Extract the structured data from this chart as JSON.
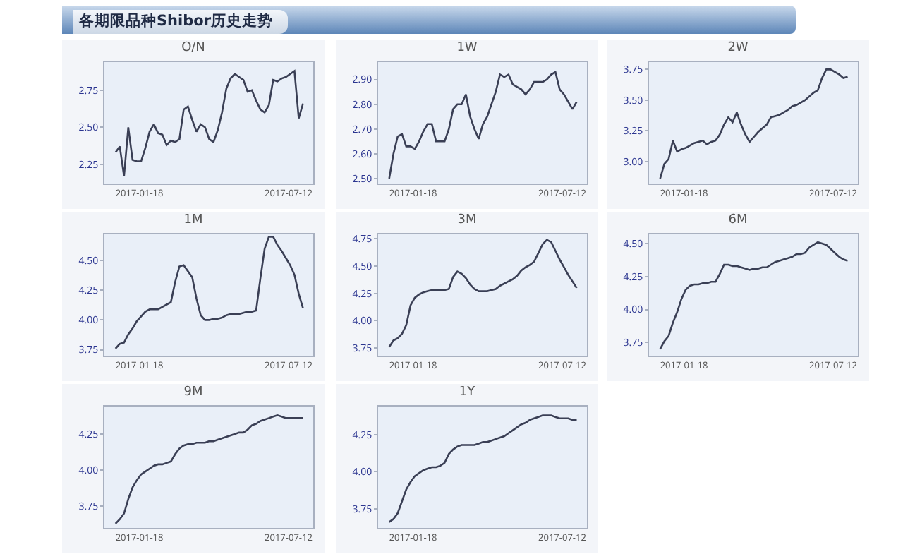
{
  "chart_data": [
    {
      "type": "other",
      "title": "各期限品种Shibor历史走势"
    },
    {
      "type": "line",
      "title": "O/N",
      "color": "#3a3f55",
      "xlim": [
        "2016-12-08",
        "2017-08-10"
      ],
      "xticks": [
        "2017-01-18",
        "2017-07-12"
      ],
      "ylim": [
        2.12,
        2.94
      ],
      "yticks": [
        2.25,
        {
          "value": 2.5,
          "label": "2.50"
        },
        2.75
      ],
      "x": [
        "2016-12-21",
        "2016-12-26",
        "2016-12-31",
        "2017-01-05",
        "2017-01-10",
        "2017-01-15",
        "2017-01-20",
        "2017-01-25",
        "2017-01-30",
        "2017-02-04",
        "2017-02-09",
        "2017-02-14",
        "2017-02-19",
        "2017-02-24",
        "2017-03-01",
        "2017-03-06",
        "2017-03-11",
        "2017-03-16",
        "2017-03-21",
        "2017-03-26",
        "2017-03-31",
        "2017-04-05",
        "2017-04-10",
        "2017-04-15",
        "2017-04-20",
        "2017-04-25",
        "2017-04-30",
        "2017-05-05",
        "2017-05-10",
        "2017-05-15",
        "2017-05-20",
        "2017-05-25",
        "2017-05-30",
        "2017-06-04",
        "2017-06-09",
        "2017-06-14",
        "2017-06-19",
        "2017-06-24",
        "2017-06-29",
        "2017-07-04",
        "2017-07-09",
        "2017-07-14",
        "2017-07-19",
        "2017-07-24",
        "2017-07-29"
      ],
      "values": [
        2.33,
        2.37,
        2.17,
        2.5,
        2.28,
        2.27,
        2.27,
        2.36,
        2.47,
        2.52,
        2.46,
        2.45,
        2.38,
        2.41,
        2.4,
        2.42,
        2.62,
        2.64,
        2.55,
        2.47,
        2.52,
        2.5,
        2.42,
        2.4,
        2.48,
        2.6,
        2.76,
        2.83,
        2.86,
        2.84,
        2.82,
        2.74,
        2.75,
        2.68,
        2.62,
        2.6,
        2.65,
        2.82,
        2.81,
        2.83,
        2.84,
        2.86,
        2.88,
        2.56,
        2.66
      ]
    },
    {
      "type": "line",
      "title": "1W",
      "color": "#3a3f55",
      "xlim": [
        "2016-12-08",
        "2017-08-10"
      ],
      "xticks": [
        "2017-01-18",
        "2017-07-12"
      ],
      "ylim": [
        2.48,
        2.97
      ],
      "yticks": [
        {
          "value": 2.5,
          "label": "2.50"
        },
        {
          "value": 2.6,
          "label": "2.60"
        },
        {
          "value": 2.7,
          "label": "2.70"
        },
        {
          "value": 2.8,
          "label": "2.80"
        },
        {
          "value": 2.9,
          "label": "2.90"
        }
      ],
      "x": [
        "2016-12-21",
        "2016-12-26",
        "2016-12-31",
        "2017-01-05",
        "2017-01-10",
        "2017-01-15",
        "2017-01-20",
        "2017-01-25",
        "2017-01-30",
        "2017-02-04",
        "2017-02-09",
        "2017-02-14",
        "2017-02-19",
        "2017-02-24",
        "2017-03-01",
        "2017-03-06",
        "2017-03-11",
        "2017-03-16",
        "2017-03-21",
        "2017-03-26",
        "2017-03-31",
        "2017-04-05",
        "2017-04-10",
        "2017-04-15",
        "2017-04-20",
        "2017-04-25",
        "2017-04-30",
        "2017-05-05",
        "2017-05-10",
        "2017-05-15",
        "2017-05-20",
        "2017-05-25",
        "2017-05-30",
        "2017-06-04",
        "2017-06-09",
        "2017-06-14",
        "2017-06-19",
        "2017-06-24",
        "2017-06-29",
        "2017-07-04",
        "2017-07-09",
        "2017-07-14",
        "2017-07-19",
        "2017-07-24",
        "2017-07-29"
      ],
      "values": [
        2.5,
        2.6,
        2.67,
        2.68,
        2.63,
        2.63,
        2.62,
        2.65,
        2.69,
        2.72,
        2.72,
        2.65,
        2.65,
        2.65,
        2.7,
        2.78,
        2.8,
        2.8,
        2.84,
        2.75,
        2.7,
        2.66,
        2.72,
        2.75,
        2.8,
        2.85,
        2.92,
        2.91,
        2.92,
        2.88,
        2.87,
        2.86,
        2.84,
        2.86,
        2.89,
        2.89,
        2.89,
        2.9,
        2.92,
        2.93,
        2.86,
        2.84,
        2.81,
        2.78,
        2.81
      ]
    },
    {
      "type": "line",
      "title": "2W",
      "color": "#3a3f55",
      "xlim": [
        "2016-12-08",
        "2017-08-10"
      ],
      "xticks": [
        "2017-01-18",
        "2017-07-12"
      ],
      "ylim": [
        2.82,
        3.81
      ],
      "yticks": [
        {
          "value": 3,
          "label": "3.00"
        },
        3.25,
        {
          "value": 3.5,
          "label": "3.50"
        },
        3.75
      ],
      "x": [
        "2016-12-21",
        "2016-12-26",
        "2016-12-31",
        "2017-01-05",
        "2017-01-10",
        "2017-01-15",
        "2017-01-20",
        "2017-01-25",
        "2017-01-30",
        "2017-02-04",
        "2017-02-09",
        "2017-02-14",
        "2017-02-19",
        "2017-02-24",
        "2017-03-01",
        "2017-03-06",
        "2017-03-11",
        "2017-03-16",
        "2017-03-21",
        "2017-03-26",
        "2017-03-31",
        "2017-04-05",
        "2017-04-10",
        "2017-04-15",
        "2017-04-20",
        "2017-04-25",
        "2017-04-30",
        "2017-05-05",
        "2017-05-10",
        "2017-05-15",
        "2017-05-20",
        "2017-05-25",
        "2017-05-30",
        "2017-06-04",
        "2017-06-09",
        "2017-06-14",
        "2017-06-19",
        "2017-06-24",
        "2017-06-29",
        "2017-07-04",
        "2017-07-09",
        "2017-07-14",
        "2017-07-19",
        "2017-07-24",
        "2017-07-29"
      ],
      "values": [
        2.86,
        2.98,
        3.02,
        3.17,
        3.08,
        3.1,
        3.11,
        3.13,
        3.15,
        3.16,
        3.17,
        3.14,
        3.16,
        3.17,
        3.22,
        3.3,
        3.36,
        3.32,
        3.4,
        3.3,
        3.22,
        3.16,
        3.2,
        3.24,
        3.27,
        3.3,
        3.36,
        3.37,
        3.38,
        3.4,
        3.42,
        3.45,
        3.46,
        3.48,
        3.5,
        3.53,
        3.56,
        3.58,
        3.68,
        3.75,
        3.75,
        3.73,
        3.71,
        3.68,
        3.69
      ]
    },
    {
      "type": "line",
      "title": "1M",
      "color": "#3a3f55",
      "xlim": [
        "2016-12-08",
        "2017-08-10"
      ],
      "xticks": [
        "2017-01-18",
        "2017-07-12"
      ],
      "ylim": [
        3.7,
        4.72
      ],
      "yticks": [
        3.75,
        {
          "value": 4,
          "label": "4.00"
        },
        4.25,
        {
          "value": 4.5,
          "label": "4.50"
        }
      ],
      "x": [
        "2016-12-21",
        "2016-12-26",
        "2016-12-31",
        "2017-01-05",
        "2017-01-10",
        "2017-01-15",
        "2017-01-20",
        "2017-01-25",
        "2017-01-30",
        "2017-02-04",
        "2017-02-09",
        "2017-02-14",
        "2017-02-19",
        "2017-02-24",
        "2017-03-01",
        "2017-03-06",
        "2017-03-11",
        "2017-03-16",
        "2017-03-21",
        "2017-03-26",
        "2017-03-31",
        "2017-04-05",
        "2017-04-10",
        "2017-04-15",
        "2017-04-20",
        "2017-04-25",
        "2017-04-30",
        "2017-05-05",
        "2017-05-10",
        "2017-05-15",
        "2017-05-20",
        "2017-05-25",
        "2017-05-30",
        "2017-06-04",
        "2017-06-09",
        "2017-06-14",
        "2017-06-19",
        "2017-06-24",
        "2017-06-29",
        "2017-07-04",
        "2017-07-09",
        "2017-07-14",
        "2017-07-19",
        "2017-07-24",
        "2017-07-29"
      ],
      "values": [
        3.76,
        3.8,
        3.81,
        3.88,
        3.93,
        3.99,
        4.03,
        4.07,
        4.09,
        4.09,
        4.09,
        4.11,
        4.13,
        4.15,
        4.32,
        4.45,
        4.46,
        4.41,
        4.36,
        4.18,
        4.04,
        4.0,
        4.0,
        4.01,
        4.01,
        4.02,
        4.04,
        4.05,
        4.05,
        4.05,
        4.06,
        4.07,
        4.07,
        4.08,
        4.35,
        4.6,
        4.7,
        4.7,
        4.63,
        4.58,
        4.52,
        4.46,
        4.38,
        4.22,
        4.1
      ]
    },
    {
      "type": "line",
      "title": "3M",
      "color": "#3a3f55",
      "xlim": [
        "2016-12-08",
        "2017-08-10"
      ],
      "xticks": [
        "2017-01-18",
        "2017-07-12"
      ],
      "ylim": [
        3.68,
        4.79
      ],
      "yticks": [
        3.75,
        {
          "value": 4,
          "label": "4.00"
        },
        4.25,
        {
          "value": 4.5,
          "label": "4.50"
        },
        4.75
      ],
      "x": [
        "2016-12-21",
        "2016-12-26",
        "2016-12-31",
        "2017-01-05",
        "2017-01-10",
        "2017-01-15",
        "2017-01-20",
        "2017-01-25",
        "2017-01-30",
        "2017-02-04",
        "2017-02-09",
        "2017-02-14",
        "2017-02-19",
        "2017-02-24",
        "2017-03-01",
        "2017-03-06",
        "2017-03-11",
        "2017-03-16",
        "2017-03-21",
        "2017-03-26",
        "2017-03-31",
        "2017-04-05",
        "2017-04-10",
        "2017-04-15",
        "2017-04-20",
        "2017-04-25",
        "2017-04-30",
        "2017-05-05",
        "2017-05-10",
        "2017-05-15",
        "2017-05-20",
        "2017-05-25",
        "2017-05-30",
        "2017-06-04",
        "2017-06-09",
        "2017-06-14",
        "2017-06-19",
        "2017-06-24",
        "2017-06-29",
        "2017-07-04",
        "2017-07-09",
        "2017-07-14",
        "2017-07-19",
        "2017-07-24",
        "2017-07-29"
      ],
      "values": [
        3.76,
        3.82,
        3.84,
        3.88,
        3.96,
        4.14,
        4.21,
        4.24,
        4.26,
        4.27,
        4.28,
        4.28,
        4.28,
        4.28,
        4.29,
        4.4,
        4.45,
        4.43,
        4.39,
        4.33,
        4.29,
        4.27,
        4.27,
        4.27,
        4.28,
        4.29,
        4.32,
        4.34,
        4.36,
        4.38,
        4.41,
        4.46,
        4.49,
        4.51,
        4.54,
        4.62,
        4.7,
        4.74,
        4.72,
        4.64,
        4.56,
        4.49,
        4.42,
        4.36,
        4.3
      ]
    },
    {
      "type": "line",
      "title": "6M",
      "color": "#3a3f55",
      "xlim": [
        "2016-12-08",
        "2017-08-10"
      ],
      "xticks": [
        "2017-01-18",
        "2017-07-12"
      ],
      "ylim": [
        3.65,
        4.57
      ],
      "yticks": [
        3.75,
        {
          "value": 4,
          "label": "4.00"
        },
        4.25,
        {
          "value": 4.5,
          "label": "4.50"
        }
      ],
      "x": [
        "2016-12-21",
        "2016-12-26",
        "2016-12-31",
        "2017-01-05",
        "2017-01-10",
        "2017-01-15",
        "2017-01-20",
        "2017-01-25",
        "2017-01-30",
        "2017-02-04",
        "2017-02-09",
        "2017-02-14",
        "2017-02-19",
        "2017-02-24",
        "2017-03-01",
        "2017-03-06",
        "2017-03-11",
        "2017-03-16",
        "2017-03-21",
        "2017-03-26",
        "2017-03-31",
        "2017-04-05",
        "2017-04-10",
        "2017-04-15",
        "2017-04-20",
        "2017-04-25",
        "2017-04-30",
        "2017-05-05",
        "2017-05-10",
        "2017-05-15",
        "2017-05-20",
        "2017-05-25",
        "2017-05-30",
        "2017-06-04",
        "2017-06-09",
        "2017-06-14",
        "2017-06-19",
        "2017-06-24",
        "2017-06-29",
        "2017-07-04",
        "2017-07-09",
        "2017-07-14",
        "2017-07-19",
        "2017-07-24",
        "2017-07-29"
      ],
      "values": [
        3.7,
        3.76,
        3.8,
        3.9,
        3.98,
        4.08,
        4.15,
        4.18,
        4.19,
        4.19,
        4.2,
        4.2,
        4.21,
        4.21,
        4.27,
        4.34,
        4.34,
        4.33,
        4.33,
        4.32,
        4.31,
        4.3,
        4.31,
        4.31,
        4.32,
        4.32,
        4.34,
        4.36,
        4.37,
        4.38,
        4.39,
        4.4,
        4.42,
        4.42,
        4.43,
        4.47,
        4.49,
        4.51,
        4.5,
        4.49,
        4.46,
        4.43,
        4.4,
        4.38,
        4.37
      ]
    },
    {
      "type": "line",
      "title": "9M",
      "color": "#3a3f55",
      "xlim": [
        "2016-12-08",
        "2017-08-10"
      ],
      "xticks": [
        "2017-01-18",
        "2017-07-12"
      ],
      "ylim": [
        3.6,
        4.44
      ],
      "yticks": [
        3.75,
        {
          "value": 4,
          "label": "4.00"
        },
        4.25
      ],
      "x": [
        "2016-12-21",
        "2016-12-26",
        "2016-12-31",
        "2017-01-05",
        "2017-01-10",
        "2017-01-15",
        "2017-01-20",
        "2017-01-25",
        "2017-01-30",
        "2017-02-04",
        "2017-02-09",
        "2017-02-14",
        "2017-02-19",
        "2017-02-24",
        "2017-03-01",
        "2017-03-06",
        "2017-03-11",
        "2017-03-16",
        "2017-03-21",
        "2017-03-26",
        "2017-03-31",
        "2017-04-05",
        "2017-04-10",
        "2017-04-15",
        "2017-04-20",
        "2017-04-25",
        "2017-04-30",
        "2017-05-05",
        "2017-05-10",
        "2017-05-15",
        "2017-05-20",
        "2017-05-25",
        "2017-05-30",
        "2017-06-04",
        "2017-06-09",
        "2017-06-14",
        "2017-06-19",
        "2017-06-24",
        "2017-06-29",
        "2017-07-04",
        "2017-07-09",
        "2017-07-14",
        "2017-07-19",
        "2017-07-24",
        "2017-07-29"
      ],
      "values": [
        3.63,
        3.66,
        3.7,
        3.8,
        3.88,
        3.93,
        3.97,
        3.99,
        4.01,
        4.03,
        4.04,
        4.04,
        4.05,
        4.06,
        4.11,
        4.15,
        4.17,
        4.18,
        4.18,
        4.19,
        4.19,
        4.19,
        4.2,
        4.2,
        4.21,
        4.22,
        4.23,
        4.24,
        4.25,
        4.26,
        4.26,
        4.28,
        4.31,
        4.32,
        4.34,
        4.35,
        4.36,
        4.37,
        4.38,
        4.37,
        4.36,
        4.36,
        4.36,
        4.36,
        4.36
      ]
    },
    {
      "type": "line",
      "title": "1Y",
      "color": "#3a3f55",
      "xlim": [
        "2016-12-08",
        "2017-08-10"
      ],
      "xticks": [
        "2017-01-18",
        "2017-07-12"
      ],
      "ylim": [
        3.62,
        4.44
      ],
      "yticks": [
        3.75,
        {
          "value": 4,
          "label": "4.00"
        },
        4.25
      ],
      "x": [
        "2016-12-21",
        "2016-12-26",
        "2016-12-31",
        "2017-01-05",
        "2017-01-10",
        "2017-01-15",
        "2017-01-20",
        "2017-01-25",
        "2017-01-30",
        "2017-02-04",
        "2017-02-09",
        "2017-02-14",
        "2017-02-19",
        "2017-02-24",
        "2017-03-01",
        "2017-03-06",
        "2017-03-11",
        "2017-03-16",
        "2017-03-21",
        "2017-03-26",
        "2017-03-31",
        "2017-04-05",
        "2017-04-10",
        "2017-04-15",
        "2017-04-20",
        "2017-04-25",
        "2017-04-30",
        "2017-05-05",
        "2017-05-10",
        "2017-05-15",
        "2017-05-20",
        "2017-05-25",
        "2017-05-30",
        "2017-06-04",
        "2017-06-09",
        "2017-06-14",
        "2017-06-19",
        "2017-06-24",
        "2017-06-29",
        "2017-07-04",
        "2017-07-09",
        "2017-07-14",
        "2017-07-19",
        "2017-07-24",
        "2017-07-29"
      ],
      "values": [
        3.66,
        3.68,
        3.72,
        3.8,
        3.88,
        3.93,
        3.97,
        3.99,
        4.01,
        4.02,
        4.03,
        4.03,
        4.04,
        4.06,
        4.12,
        4.15,
        4.17,
        4.18,
        4.18,
        4.18,
        4.18,
        4.19,
        4.2,
        4.2,
        4.21,
        4.22,
        4.23,
        4.24,
        4.26,
        4.28,
        4.3,
        4.32,
        4.33,
        4.35,
        4.36,
        4.37,
        4.38,
        4.38,
        4.38,
        4.37,
        4.36,
        4.36,
        4.36,
        4.35,
        4.35
      ]
    }
  ]
}
